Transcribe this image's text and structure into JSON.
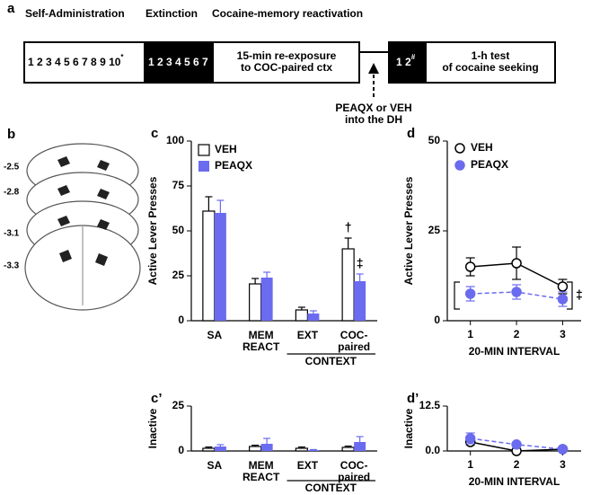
{
  "panel_a": {
    "letter": "a",
    "headings": [
      "Self-Administration",
      "Extinction",
      "Cocaine-memory reactivation"
    ],
    "sa_days": "1 2 3 4 5 6 7 8 9 10",
    "sa_mark": "*",
    "ext_days": "1 2 3 4 5 6 7",
    "reexposure": "15-min re-exposure\nto COC-paired ctx",
    "test_days": "1 2",
    "test_mark": "#",
    "test": "1-h test\nof cocaine seeking",
    "infusion": "PEAQX or VEH\ninto the DH"
  },
  "panel_b": {
    "letter": "b",
    "levels": [
      "-2.5",
      "-2.8",
      "-3.1",
      "-3.3"
    ]
  },
  "chart_data": [
    {
      "panel": "c",
      "type": "bar",
      "y_label": "Active Lever Presses",
      "categories": [
        "SA",
        "MEM\nREACT",
        "EXT",
        "COC-\npaired"
      ],
      "group_label": "CONTEXT",
      "series": [
        {
          "name": "VEH",
          "color": "#ffffff",
          "edge_color": "#000000",
          "values": [
            61,
            20.5,
            6,
            40
          ],
          "errors": [
            8,
            3,
            1.5,
            6
          ]
        },
        {
          "name": "PEAQX",
          "color": "#6b6bef",
          "values": [
            60,
            24,
            4,
            22
          ],
          "errors": [
            7,
            3,
            1.5,
            4
          ]
        }
      ],
      "ylim": [
        0,
        100
      ],
      "yticks": [
        0,
        25,
        50,
        75,
        100
      ],
      "annotations": [
        "†",
        "‡"
      ],
      "legend": true
    },
    {
      "panel": "d",
      "type": "line",
      "y_label": "Active Lever Presses",
      "x_label": "20-MIN INTERVAL",
      "x": [
        1,
        2,
        3
      ],
      "xlim": [
        0.5,
        3.4
      ],
      "xticks": [
        1,
        2,
        3
      ],
      "series": [
        {
          "name": "VEH",
          "color": "#000000",
          "marker_fill": "#ffffff",
          "line_style": "solid",
          "values": [
            15,
            16,
            9.5
          ],
          "errors": [
            2.5,
            4.5,
            2
          ]
        },
        {
          "name": "PEAQX",
          "color": "#6b6bef",
          "marker_fill": "#6b6bef",
          "line_style": "dashed",
          "values": [
            7.5,
            8,
            6
          ],
          "errors": [
            2,
            2,
            2
          ]
        }
      ],
      "ylim": [
        0,
        50
      ],
      "yticks": [
        0,
        25,
        50
      ],
      "annotations": [
        "‡"
      ],
      "legend": true
    },
    {
      "panel": "c’",
      "type": "bar",
      "y_label": "Inactive",
      "categories": [
        "SA",
        "MEM\nREACT",
        "EXT",
        "COC-\npaired"
      ],
      "group_label": "CONTEXT",
      "series": [
        {
          "name": "VEH",
          "color": "#ffffff",
          "edge_color": "#000000",
          "values": [
            1.5,
            2.5,
            1.5,
            2
          ],
          "errors": [
            0.7,
            0.7,
            0.7,
            0.7
          ]
        },
        {
          "name": "PEAQX",
          "color": "#6b6bef",
          "values": [
            2.5,
            4,
            0.5,
            5
          ],
          "errors": [
            1,
            3,
            0.3,
            3
          ]
        }
      ],
      "ylim": [
        0,
        25
      ],
      "yticks": [
        0,
        25
      ],
      "legend": false
    },
    {
      "panel": "d’",
      "type": "line",
      "y_label": "Inactive",
      "x_label": "20-MIN INTERVAL",
      "x": [
        1,
        2,
        3
      ],
      "xlim": [
        0.5,
        3.4
      ],
      "xticks": [
        1,
        2,
        3
      ],
      "series": [
        {
          "name": "VEH",
          "color": "#000000",
          "marker_fill": "#ffffff",
          "line_style": "solid",
          "values": [
            2.5,
            0,
            0.5
          ],
          "errors": [
            0.8,
            0.2,
            0.2
          ]
        },
        {
          "name": "PEAQX",
          "color": "#6b6bef",
          "marker_fill": "#6b6bef",
          "line_style": "dashed",
          "values": [
            3.5,
            1.8,
            0.5
          ],
          "errors": [
            1.5,
            0.5,
            0.3
          ]
        }
      ],
      "ylim": [
        0,
        12.5
      ],
      "yticks": [
        {
          "value": 0,
          "label": "0.0"
        },
        12.5
      ],
      "legend": false
    }
  ]
}
